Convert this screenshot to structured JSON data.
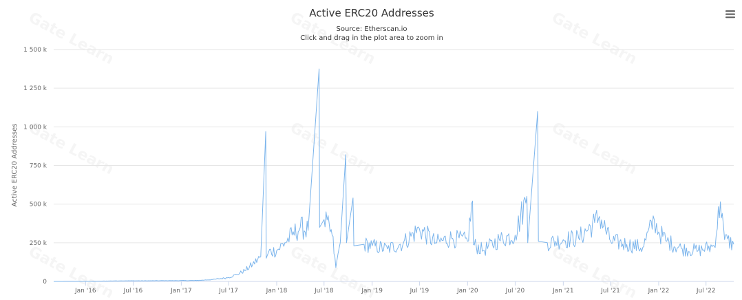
{
  "chart_data": {
    "type": "line",
    "title": "Active ERC20 Addresses",
    "subtitle": "Source: Etherscan.io",
    "subtitle2": "Click and drag in the plot area to zoom in",
    "xlabel": "",
    "ylabel": "Active ERC20 Addresses",
    "x_tick_labels": [
      "Jan '16",
      "Jul '16",
      "Jan '17",
      "Jul '17",
      "Jan '18",
      "Jul '18",
      "Jan '19",
      "Jul '19",
      "Jan '20",
      "Jul '20",
      "Jan '21",
      "Jul '21",
      "Jan '22",
      "Jul '22"
    ],
    "y_tick_labels": [
      "0",
      "250 k",
      "500 k",
      "750 k",
      "1 000 k",
      "1 250 k",
      "1 500 k"
    ],
    "y_ticks": [
      0,
      250000,
      500000,
      750000,
      1000000,
      1250000,
      1500000
    ],
    "ylim": [
      0,
      1500000
    ],
    "xlim": [
      "2015-09-01",
      "2022-10-15"
    ],
    "grid": true,
    "legend": "none",
    "line_color": "#7cb5ec",
    "series": [
      {
        "values": [
          [
            "2015-09-01",
            0
          ],
          [
            "2015-12-01",
            500
          ],
          [
            "2016-03-01",
            2000
          ],
          [
            "2016-06-01",
            4000
          ],
          [
            "2016-09-01",
            4000
          ],
          [
            "2016-12-01",
            5000
          ],
          [
            "2017-03-01",
            6000
          ],
          [
            "2017-05-01",
            12000
          ],
          [
            "2017-07-01",
            25000
          ],
          [
            "2017-08-01",
            45000
          ],
          [
            "2017-09-01",
            70000
          ],
          [
            "2017-10-01",
            110000
          ],
          [
            "2017-11-01",
            160000
          ],
          [
            "2017-11-20",
            970000
          ],
          [
            "2017-11-22",
            150000
          ],
          [
            "2017-12-01",
            190000
          ],
          [
            "2018-01-01",
            200000
          ],
          [
            "2018-02-01",
            250000
          ],
          [
            "2018-03-01",
            300000
          ],
          [
            "2018-04-01",
            350000
          ],
          [
            "2018-05-01",
            330000
          ],
          [
            "2018-06-12",
            1375000
          ],
          [
            "2018-06-14",
            350000
          ],
          [
            "2018-07-01",
            400000
          ],
          [
            "2018-08-01",
            300000
          ],
          [
            "2018-08-15",
            90000
          ],
          [
            "2018-09-01",
            250000
          ],
          [
            "2018-09-22",
            820000
          ],
          [
            "2018-09-25",
            250000
          ],
          [
            "2018-10-20",
            540000
          ],
          [
            "2018-10-23",
            230000
          ],
          [
            "2018-12-01",
            240000
          ],
          [
            "2019-01-01",
            230000
          ],
          [
            "2019-03-01",
            210000
          ],
          [
            "2019-05-01",
            250000
          ],
          [
            "2019-07-01",
            340000
          ],
          [
            "2019-09-01",
            250000
          ],
          [
            "2019-11-01",
            280000
          ],
          [
            "2020-01-01",
            260000
          ],
          [
            "2020-01-20",
            520000
          ],
          [
            "2020-01-23",
            240000
          ],
          [
            "2020-03-01",
            200000
          ],
          [
            "2020-05-01",
            270000
          ],
          [
            "2020-07-01",
            300000
          ],
          [
            "2020-08-15",
            550000
          ],
          [
            "2020-08-18",
            250000
          ],
          [
            "2020-09-25",
            1100000
          ],
          [
            "2020-09-28",
            260000
          ],
          [
            "2020-11-01",
            250000
          ],
          [
            "2021-01-01",
            270000
          ],
          [
            "2021-03-01",
            280000
          ],
          [
            "2021-05-01",
            380000
          ],
          [
            "2021-05-20",
            420000
          ],
          [
            "2021-07-01",
            260000
          ],
          [
            "2021-09-01",
            240000
          ],
          [
            "2021-11-01",
            220000
          ],
          [
            "2021-12-15",
            400000
          ],
          [
            "2022-01-01",
            320000
          ],
          [
            "2022-02-01",
            260000
          ],
          [
            "2022-04-01",
            210000
          ],
          [
            "2022-06-01",
            200000
          ],
          [
            "2022-08-01",
            230000
          ],
          [
            "2022-08-25",
            515000
          ],
          [
            "2022-09-01",
            440000
          ],
          [
            "2022-09-10",
            270000
          ],
          [
            "2022-10-15",
            240000
          ]
        ]
      }
    ]
  },
  "watermark_text": "Gate Learn",
  "menu_icon": "hamburger-menu-icon"
}
